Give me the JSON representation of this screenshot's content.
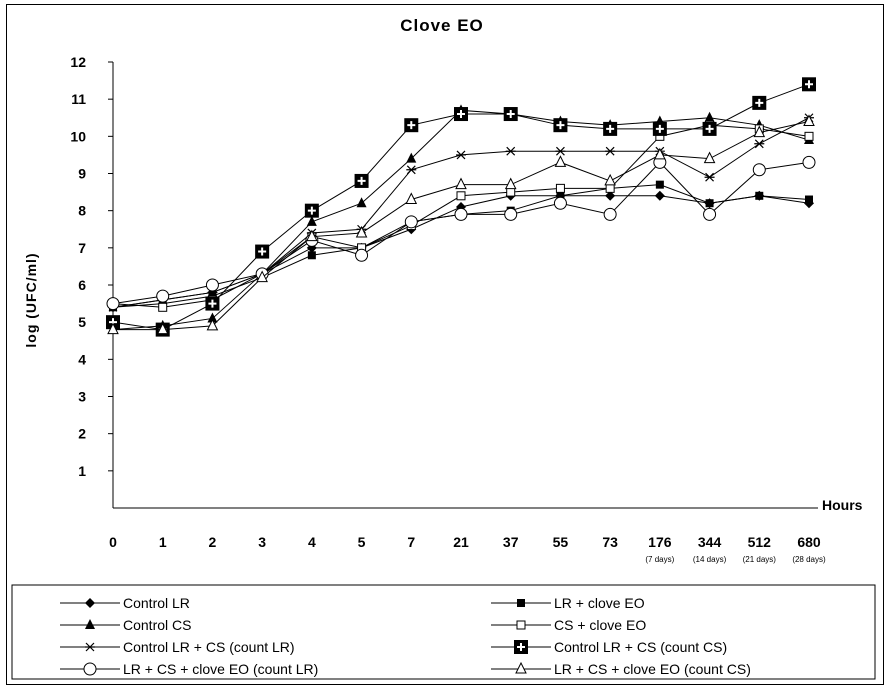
{
  "chart_data": {
    "type": "line",
    "title": "Clove EO",
    "xlabel": "Hours",
    "ylabel": "log (UFC/ml)",
    "ylim": [
      0,
      12
    ],
    "yticks": [
      1,
      2,
      3,
      4,
      5,
      6,
      7,
      8,
      9,
      10,
      11,
      12
    ],
    "categories": [
      "0",
      "1",
      "2",
      "3",
      "4",
      "5",
      "7",
      "21",
      "37",
      "55",
      "73",
      "176",
      "344",
      "512",
      "680"
    ],
    "category_sublabels": [
      "",
      "",
      "",
      "",
      "",
      "",
      "",
      "",
      "",
      "",
      "",
      "(7 days)",
      "(14 days)",
      "(21 days)",
      "(28 days)"
    ],
    "grid": false,
    "legend_position": "bottom",
    "series": [
      {
        "name": "Control LR",
        "marker": "diamond-filled",
        "values": [
          5.4,
          5.6,
          5.8,
          6.3,
          7.0,
          7.0,
          7.5,
          8.1,
          8.4,
          8.4,
          8.4,
          8.4,
          8.2,
          8.4,
          8.2
        ]
      },
      {
        "name": "LR + clove EO",
        "marker": "square-filled",
        "values": [
          5.4,
          5.5,
          5.7,
          6.2,
          6.8,
          7.0,
          7.7,
          7.9,
          8.0,
          8.4,
          8.6,
          8.7,
          8.2,
          8.4,
          8.3
        ]
      },
      {
        "name": "Control CS",
        "marker": "triangle-filled",
        "values": [
          4.8,
          4.9,
          5.1,
          6.3,
          7.7,
          8.2,
          9.4,
          10.7,
          10.6,
          10.4,
          10.3,
          10.4,
          10.5,
          10.3,
          9.9
        ]
      },
      {
        "name": "CS + clove EO",
        "marker": "square-open",
        "values": [
          5.5,
          5.4,
          5.6,
          6.3,
          7.3,
          7.0,
          7.6,
          8.4,
          8.5,
          8.6,
          8.6,
          10.0,
          10.3,
          10.2,
          10.0
        ]
      },
      {
        "name": "Control LR + CS (count LR)",
        "marker": "asterisk",
        "values": [
          5.4,
          5.6,
          5.8,
          6.3,
          7.4,
          7.5,
          9.1,
          9.5,
          9.6,
          9.6,
          9.6,
          9.6,
          8.9,
          9.8,
          10.5
        ]
      },
      {
        "name": "Control LR + CS (count CS)",
        "marker": "square-plus",
        "values": [
          5.0,
          4.8,
          5.5,
          6.9,
          8.0,
          8.8,
          10.3,
          10.6,
          10.6,
          10.3,
          10.2,
          10.2,
          10.2,
          10.9,
          11.4
        ]
      },
      {
        "name": "LR + CS + clove EO (count LR)",
        "marker": "circle-open",
        "values": [
          5.5,
          5.7,
          6.0,
          6.3,
          7.2,
          6.8,
          7.7,
          7.9,
          7.9,
          8.2,
          7.9,
          9.3,
          7.9,
          9.1,
          9.3
        ]
      },
      {
        "name": "LR + CS + clove EO (count CS)",
        "marker": "triangle-open",
        "values": [
          4.8,
          4.8,
          4.9,
          6.2,
          7.3,
          7.4,
          8.3,
          8.7,
          8.7,
          9.3,
          8.8,
          9.5,
          9.4,
          10.1,
          10.4
        ]
      }
    ]
  }
}
